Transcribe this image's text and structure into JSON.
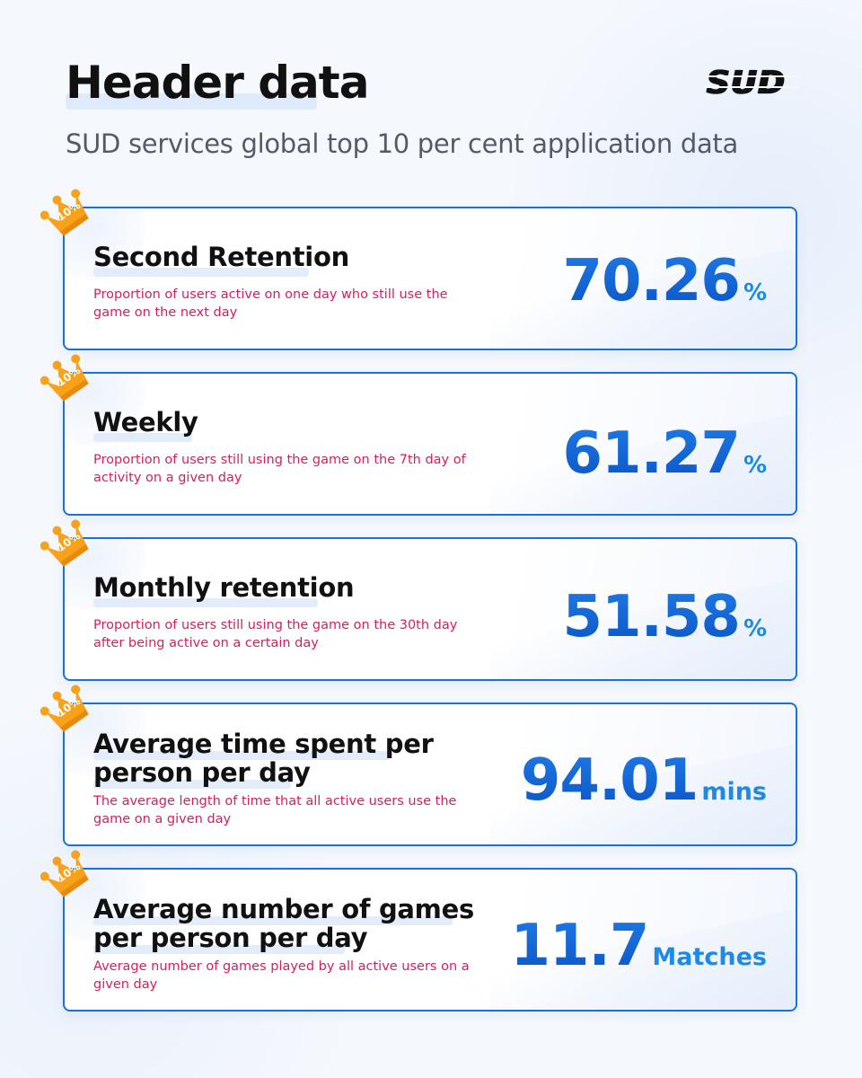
{
  "header": {
    "title": "Header data",
    "subtitle": "SUD services global top 10 per cent application data",
    "logo_text": "SUD"
  },
  "colors": {
    "accent": "#1262d6",
    "accent_light": "#1e8ae6",
    "description": "#d61f5a",
    "badge": "#f7a21a",
    "card_border": "#1a6fd8"
  },
  "badge_label": "10%",
  "cards": [
    {
      "title": "Second Retention",
      "description": "Proportion of users active on one day who still use the game on the next day",
      "value": "70.26",
      "unit": "%"
    },
    {
      "title": "Weekly",
      "description": "Proportion of users still using the game on the 7th day of activity on a given day",
      "value": "61.27",
      "unit": "%"
    },
    {
      "title": "Monthly retention",
      "description": "Proportion of users still using the game on the 30th day after being active on a certain day",
      "value": "51.58",
      "unit": "%"
    },
    {
      "title": "Average time spent per person per day",
      "description": "The average length of time that all active users use the game on a given day",
      "value": "94.01",
      "unit": "mins"
    },
    {
      "title": "Average number of games per person per day",
      "description": "Average number of games played by all active users on a given day",
      "value": "11.7",
      "unit": "Matches"
    }
  ]
}
